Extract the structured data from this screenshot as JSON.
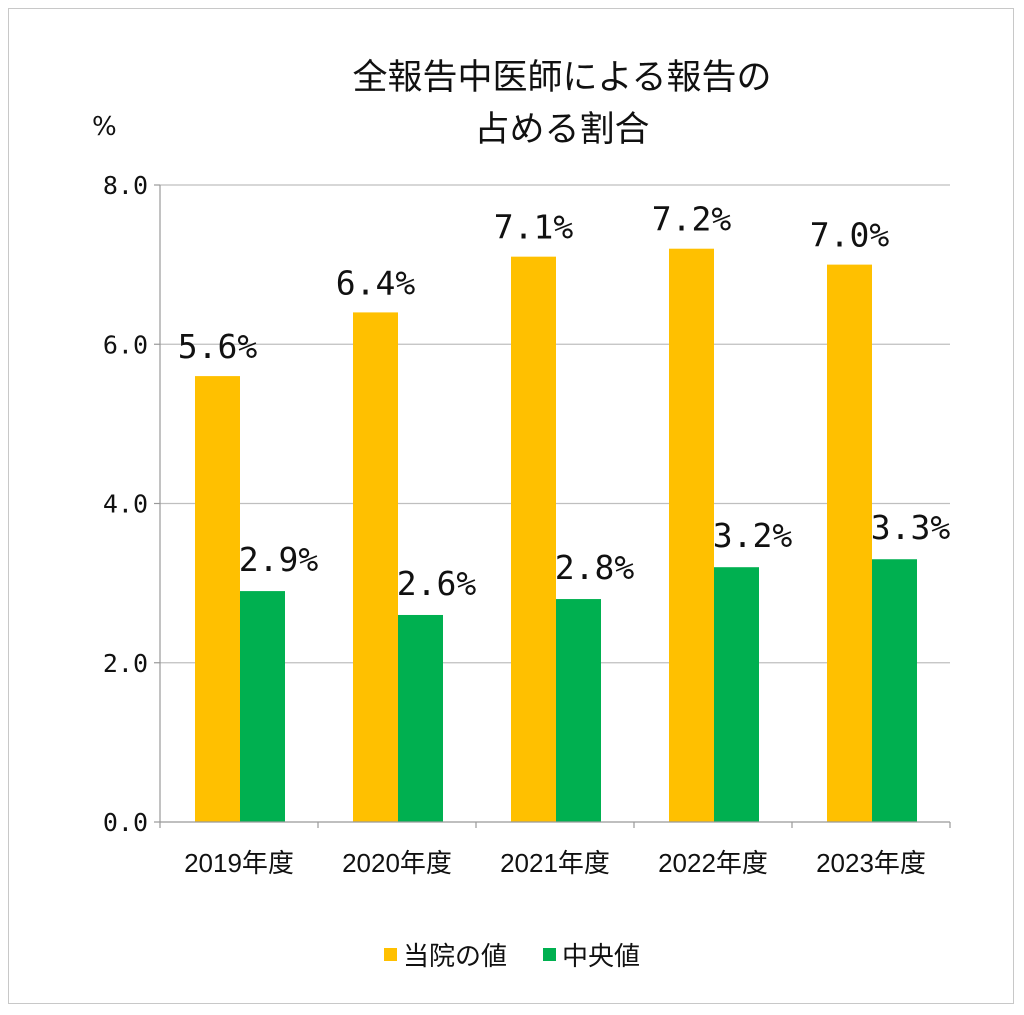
{
  "chart_data": {
    "type": "bar",
    "title": [
      "全報告中医師による報告の",
      "占める割合"
    ],
    "ylabel": "%",
    "xlabel": "",
    "categories": [
      "2019年度",
      "2020年度",
      "2021年度",
      "2022年度",
      "2023年度"
    ],
    "series": [
      {
        "name": "当院の値",
        "color": "#FFC000",
        "values": [
          5.6,
          6.4,
          7.1,
          7.2,
          7.0
        ],
        "labels": [
          "5.6%",
          "6.4%",
          "7.1%",
          "7.2%",
          "7.0%"
        ]
      },
      {
        "name": "中央値",
        "color": "#00B050",
        "values": [
          2.9,
          2.6,
          2.8,
          3.2,
          3.3
        ],
        "labels": [
          "2.9%",
          "2.6%",
          "2.8%",
          "3.2%",
          "3.3%"
        ]
      }
    ],
    "ylim": [
      0,
      8
    ],
    "yticks": [
      "0.0",
      "2.0",
      "4.0",
      "6.0",
      "8.0"
    ],
    "grid": true,
    "legend": "bottom"
  }
}
